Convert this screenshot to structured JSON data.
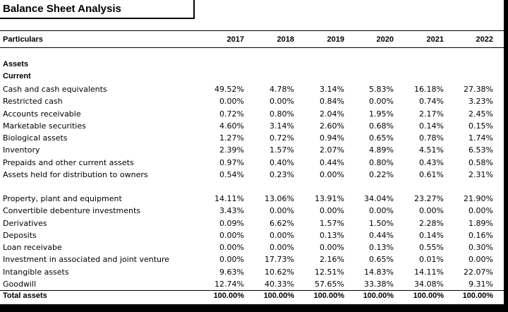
{
  "title": "Balance Sheet Analysis",
  "header": {
    "label": "Particulars",
    "years": [
      "2017",
      "2018",
      "2019",
      "2020",
      "2021",
      "2022"
    ]
  },
  "sections": {
    "assets": "Assets",
    "current": "Current"
  },
  "current_rows": [
    {
      "label": "Cash and cash equivalents",
      "values": [
        "49.52%",
        "4.78%",
        "3.14%",
        "5.83%",
        "16.18%",
        "27.38%"
      ]
    },
    {
      "label": "Restricted cash",
      "values": [
        "0.00%",
        "0.00%",
        "0.84%",
        "0.00%",
        "0.74%",
        "3.23%"
      ]
    },
    {
      "label": "Accounts receivable",
      "values": [
        "0.72%",
        "0.80%",
        "2.04%",
        "1.95%",
        "2.17%",
        "2.45%"
      ]
    },
    {
      "label": "Marketable securities",
      "values": [
        "4.60%",
        "3.14%",
        "2.60%",
        "0.68%",
        "0.14%",
        "0.15%"
      ]
    },
    {
      "label": "Biological assets",
      "values": [
        "1.27%",
        "0.72%",
        "0.94%",
        "0.65%",
        "0.78%",
        "1.74%"
      ]
    },
    {
      "label": "Inventory",
      "values": [
        "2.39%",
        "1.57%",
        "2.07%",
        "4.89%",
        "4.51%",
        "6.53%"
      ]
    },
    {
      "label": "Prepaids and other current assets",
      "values": [
        "0.97%",
        "0.40%",
        "0.44%",
        "0.80%",
        "0.43%",
        "0.58%"
      ]
    },
    {
      "label": "Assets held for distribution to owners",
      "values": [
        "0.54%",
        "0.23%",
        "0.00%",
        "0.22%",
        "0.61%",
        "2.31%"
      ]
    }
  ],
  "noncurrent_rows": [
    {
      "label": "Property, plant and equipment",
      "values": [
        "14.11%",
        "13.06%",
        "13.91%",
        "34.04%",
        "23.27%",
        "21.90%"
      ]
    },
    {
      "label": "Convertible debenture investments",
      "values": [
        "3.43%",
        "0.00%",
        "0.00%",
        "0.00%",
        "0.00%",
        "0.00%"
      ]
    },
    {
      "label": "Derivatives",
      "values": [
        "0.09%",
        "6.62%",
        "1.57%",
        "1.50%",
        "2.28%",
        "1.89%"
      ]
    },
    {
      "label": "Deposits",
      "values": [
        "0.00%",
        "0.00%",
        "0.13%",
        "0.44%",
        "0.14%",
        "0.16%"
      ]
    },
    {
      "label": "Loan receivabe",
      "values": [
        "0.00%",
        "0.00%",
        "0.00%",
        "0.13%",
        "0.55%",
        "0.30%"
      ]
    },
    {
      "label": "Investment in associated and joint venture",
      "values": [
        "0.00%",
        "17.73%",
        "2.16%",
        "0.65%",
        "0.01%",
        "0.00%"
      ]
    },
    {
      "label": "Intangible assets",
      "values": [
        "9.63%",
        "10.62%",
        "12.51%",
        "14.83%",
        "14.11%",
        "22.07%"
      ]
    },
    {
      "label": "Goodwill",
      "values": [
        "12.74%",
        "40.33%",
        "57.65%",
        "33.38%",
        "34.08%",
        "9.31%"
      ]
    }
  ],
  "total_row": {
    "label": "Total assets",
    "values": [
      "100.00%",
      "100.00%",
      "100.00%",
      "100.00%",
      "100.00%",
      "100.00%"
    ]
  }
}
